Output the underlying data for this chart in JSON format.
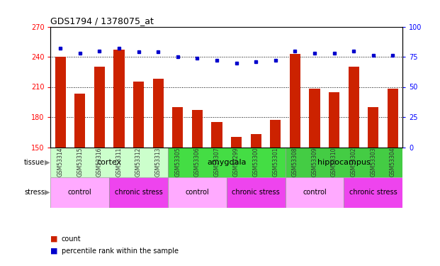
{
  "title": "GDS1794 / 1378075_at",
  "samples": [
    "GSM53314",
    "GSM53315",
    "GSM53316",
    "GSM53311",
    "GSM53312",
    "GSM53313",
    "GSM53305",
    "GSM53306",
    "GSM53307",
    "GSM53299",
    "GSM53300",
    "GSM53301",
    "GSM53308",
    "GSM53309",
    "GSM53310",
    "GSM53302",
    "GSM53303",
    "GSM53304"
  ],
  "counts": [
    240,
    203,
    230,
    247,
    215,
    218,
    190,
    187,
    175,
    160,
    163,
    177,
    243,
    208,
    205,
    230,
    190,
    208
  ],
  "percentiles": [
    82,
    78,
    80,
    82,
    79,
    79,
    75,
    74,
    72,
    70,
    71,
    72,
    80,
    78,
    78,
    80,
    76,
    76
  ],
  "ylim_left": [
    150,
    270
  ],
  "ylim_right": [
    0,
    100
  ],
  "yticks_left": [
    150,
    180,
    210,
    240,
    270
  ],
  "yticks_right": [
    0,
    25,
    50,
    75,
    100
  ],
  "bar_color": "#cc2200",
  "dot_color": "#0000cc",
  "grid_color": "#000000",
  "xlabels_bg": "#cccccc",
  "tissue_groups": [
    {
      "label": "cortex",
      "start": 0,
      "end": 6,
      "color": "#ccffcc"
    },
    {
      "label": "amygdala",
      "start": 6,
      "end": 12,
      "color": "#44dd44"
    },
    {
      "label": "hippocampus",
      "start": 12,
      "end": 18,
      "color": "#44cc44"
    }
  ],
  "stress_groups": [
    {
      "label": "control",
      "start": 0,
      "end": 3,
      "color": "#ffaaff"
    },
    {
      "label": "chronic stress",
      "start": 3,
      "end": 6,
      "color": "#ee44ee"
    },
    {
      "label": "control",
      "start": 6,
      "end": 9,
      "color": "#ffaaff"
    },
    {
      "label": "chronic stress",
      "start": 9,
      "end": 12,
      "color": "#ee44ee"
    },
    {
      "label": "control",
      "start": 12,
      "end": 15,
      "color": "#ffaaff"
    },
    {
      "label": "chronic stress",
      "start": 15,
      "end": 18,
      "color": "#ee44ee"
    }
  ],
  "bar_width": 0.55,
  "figsize": [
    6.21,
    3.75
  ],
  "dpi": 100
}
